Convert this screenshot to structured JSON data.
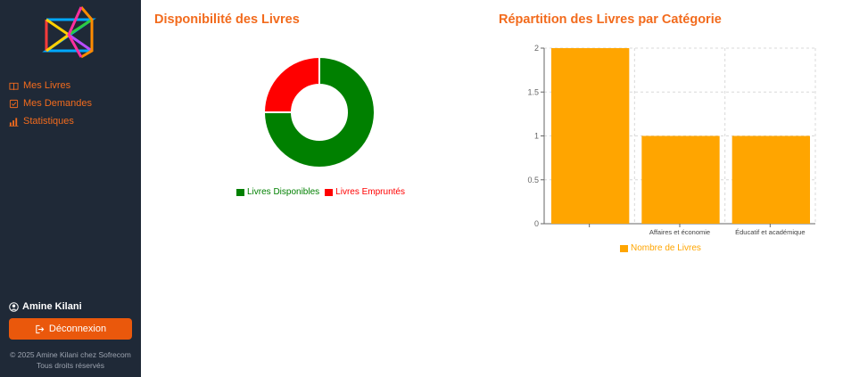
{
  "sidebar": {
    "logo_icon": "abstract-logo-icon",
    "items": [
      {
        "label": "Mes Livres",
        "icon": "book-open-icon"
      },
      {
        "label": "Mes Demandes",
        "icon": "checkbox-icon"
      },
      {
        "label": "Statistiques",
        "icon": "bar-chart-icon"
      }
    ],
    "user_name": "Amine Kilani",
    "logout_label": "Déconnexion",
    "footer_line1": "© 2025 Amine Kilani chez Sofrecom",
    "footer_line2": "Tous droits réservés"
  },
  "colors": {
    "accent": "#f26b1d",
    "sidebar_bg": "#1f2937",
    "available": "#008000",
    "borrowed": "#ff0000",
    "bar": "#ffa500"
  },
  "chart_data": [
    {
      "type": "pie",
      "title": "Disponibilité des Livres",
      "donut": true,
      "labels": [
        "Livres Disponibles",
        "Livres Empruntés"
      ],
      "values": [
        3,
        1
      ],
      "colors": [
        "#008000",
        "#ff0000"
      ],
      "legend": "bottom"
    },
    {
      "type": "bar",
      "title": "Répartition des Livres par Catégorie",
      "categories": [
        "",
        "Affaires et économie",
        "Éducatif et académique"
      ],
      "series": [
        {
          "name": "Nombre de Livres",
          "values": [
            2,
            1,
            1
          ]
        }
      ],
      "ylim": [
        0,
        2
      ],
      "yticks": [
        "0",
        "0.5",
        "1",
        "1.5",
        "2"
      ],
      "grid": true,
      "legend": "bottom",
      "color": "#ffa500"
    }
  ]
}
